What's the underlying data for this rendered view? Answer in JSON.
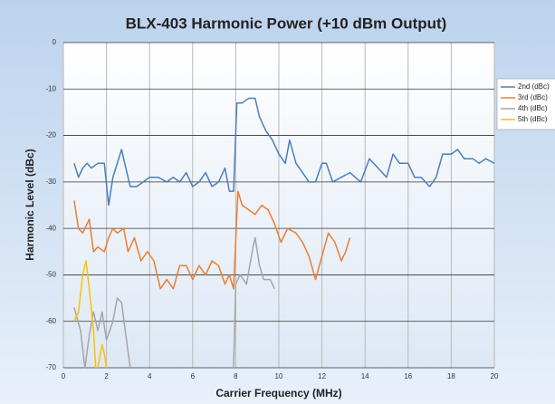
{
  "chart_data": {
    "type": "line",
    "title": "BLX-403 Harmonic Power (+10 dBm Output)",
    "x_label": "Carrier Frequency (MHz)",
    "y_label": "Harmonic Level (dBc)",
    "xlim": [
      0,
      20
    ],
    "xticks": [
      0,
      2,
      4,
      6,
      8,
      10,
      12,
      14,
      16,
      18,
      20
    ],
    "ylim": [
      -70,
      0
    ],
    "yticks": [
      0,
      -10,
      -20,
      -30,
      -40,
      -50,
      -60,
      -70
    ],
    "grid": true,
    "legend": "right",
    "series": [
      {
        "name": "2nd (dBc)",
        "color": "#4a7ebb",
        "x": [
          0.5,
          0.7,
          0.9,
          1.1,
          1.3,
          1.6,
          1.9,
          2.1,
          2.3,
          2.5,
          2.7,
          2.9,
          3.1,
          3.4,
          3.7,
          4.0,
          4.4,
          4.8,
          5.1,
          5.4,
          5.7,
          6.0,
          6.3,
          6.6,
          6.9,
          7.2,
          7.5,
          7.7,
          7.9,
          8.05,
          8.3,
          8.6,
          8.9,
          9.1,
          9.4,
          9.7,
          10.0,
          10.3,
          10.5,
          10.8,
          11.1,
          11.4,
          11.7,
          12.0,
          12.2,
          12.5,
          12.9,
          13.3,
          13.8,
          14.2,
          14.6,
          15.0,
          15.3,
          15.6,
          16.0,
          16.3,
          16.6,
          17.0,
          17.3,
          17.6,
          18.0,
          18.3,
          18.6,
          19.0,
          19.3,
          19.6,
          20.0
        ],
        "values": [
          -26,
          -29,
          -27,
          -26,
          -27,
          -26,
          -26,
          -35,
          -29,
          -26,
          -23,
          -27,
          -31,
          -31,
          -30,
          -29,
          -29,
          -30,
          -29,
          -30,
          -28,
          -31,
          -30,
          -28,
          -31,
          -30,
          -27,
          -32,
          -32,
          -13,
          -13,
          -12,
          -12,
          -16,
          -19,
          -21,
          -24,
          -26,
          -21,
          -26,
          -28,
          -30,
          -30,
          -26,
          -26,
          -30,
          -29,
          -28,
          -30,
          -25,
          -27,
          -29,
          -24,
          -26,
          -26,
          -29,
          -29,
          -31,
          -29,
          -24,
          -24,
          -23,
          -25,
          -25,
          -26,
          -25,
          -26
        ]
      },
      {
        "name": "3rd (dBc)",
        "color": "#ed7d31",
        "x": [
          0.5,
          0.7,
          0.9,
          1.2,
          1.4,
          1.6,
          1.9,
          2.1,
          2.3,
          2.5,
          2.8,
          3.0,
          3.3,
          3.6,
          3.9,
          4.2,
          4.5,
          4.8,
          5.1,
          5.4,
          5.7,
          6.0,
          6.3,
          6.6,
          6.9,
          7.2,
          7.5,
          7.7,
          7.9,
          8.1,
          8.3,
          8.6,
          8.9,
          9.2,
          9.5,
          9.8,
          10.1,
          10.4,
          10.8,
          11.1,
          11.4,
          11.7,
          12.0,
          12.3,
          12.6,
          12.9,
          13.1,
          13.3
        ],
        "values": [
          -34,
          -40,
          -41,
          -38,
          -45,
          -44,
          -45,
          -42,
          -40,
          -41,
          -40,
          -45,
          -42,
          -47,
          -45,
          -47,
          -53,
          -51,
          -53,
          -48,
          -48,
          -51,
          -48,
          -50,
          -47,
          -48,
          -52,
          -50,
          -53,
          -32,
          -35,
          -36,
          -37,
          -35,
          -36,
          -39,
          -43,
          -40,
          -41,
          -43,
          -46,
          -51,
          -46,
          -41,
          -43,
          -47,
          -45,
          -42
        ]
      },
      {
        "name": "4th (dBc)",
        "color": "#a5a5a5",
        "x": [
          0.5,
          0.8,
          1.0,
          1.2,
          1.4,
          1.6,
          1.8,
          2.0,
          2.3,
          2.5,
          2.7,
          2.9,
          3.1,
          null,
          7.9,
          8.0,
          8.2,
          8.5,
          8.8,
          8.9,
          9.1,
          9.3,
          9.6,
          9.8
        ],
        "values": [
          -57,
          -62,
          -70,
          -63,
          -58,
          -62,
          -58,
          -64,
          -60,
          -55,
          -56,
          -63,
          -70,
          null,
          -70,
          -52,
          -50,
          -52,
          -44,
          -42,
          -48,
          -51,
          -51,
          -53
        ]
      },
      {
        "name": "5th (dBc)",
        "color": "#ffc000",
        "x": [
          0.5,
          0.7,
          0.9,
          1.05,
          1.2,
          1.4,
          1.5,
          null,
          1.6,
          1.8,
          1.9,
          2.0
        ],
        "values": [
          -60,
          -58,
          -50,
          -47,
          -53,
          -62,
          -70,
          null,
          -70,
          -65,
          -67,
          -70
        ]
      }
    ]
  }
}
